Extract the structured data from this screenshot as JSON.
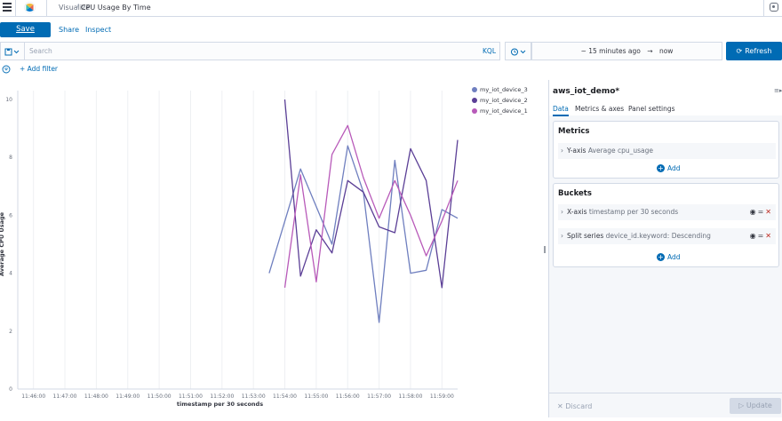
{
  "header": {
    "breadcrumb_root": "Visualize",
    "breadcrumb_sep": "/",
    "title": "CPU Usage By Time"
  },
  "actions": {
    "save": "Save",
    "share": "Share",
    "inspect": "Inspect"
  },
  "query": {
    "placeholder": "Search",
    "language": "KQL",
    "range_start": "~ 15 minutes ago",
    "range_arrow": "→",
    "range_end": "now",
    "refresh": "Refresh"
  },
  "filters": {
    "add_filter": "+ Add filter"
  },
  "panel": {
    "title": "aws_iot_demo*",
    "tabs": [
      "Data",
      "Metrics & axes",
      "Panel settings"
    ],
    "metrics_title": "Metrics",
    "metric_row": {
      "label": "Y-axis",
      "desc": "Average cpu_usage"
    },
    "buckets_title": "Buckets",
    "bucket_rows": [
      {
        "label": "X-axis",
        "desc": "timestamp per 30 seconds"
      },
      {
        "label": "Split series",
        "desc": "device_id.keyword: Descending"
      }
    ],
    "add_label": "Add",
    "discard": "Discard",
    "update": "Update"
  },
  "chart_data": {
    "type": "line",
    "xlabel": "timestamp per 30 seconds",
    "ylabel": "Average CPU Usage",
    "ylim": [
      0,
      10
    ],
    "yticks": [
      "0",
      "2",
      "4",
      "6",
      "8",
      "10"
    ],
    "x_ticks": [
      "11:46:00",
      "11:47:00",
      "11:48:00",
      "11:49:00",
      "11:50:00",
      "11:51:00",
      "11:52:00",
      "11:53:00",
      "11:54:00",
      "11:55:00",
      "11:56:00",
      "11:57:00",
      "11:58:00",
      "11:59:00"
    ],
    "legend_position": "top-right",
    "series": [
      {
        "name": "my_iot_device_3",
        "color": "#6f7fbf",
        "x": [
          "11:53:30",
          "11:54:30",
          "11:55:00",
          "11:55:30",
          "11:56:00",
          "11:56:30",
          "11:57:00",
          "11:57:30",
          "11:58:00",
          "11:58:30",
          "11:59:00",
          "11:59:30"
        ],
        "values": [
          4.0,
          7.6,
          6.3,
          5.0,
          8.4,
          6.8,
          2.3,
          7.9,
          4.0,
          4.1,
          6.2,
          5.9
        ]
      },
      {
        "name": "my_iot_device_2",
        "color": "#5b3f96",
        "x": [
          "11:54:00",
          "11:54:30",
          "11:55:00",
          "11:55:30",
          "11:56:00",
          "11:56:30",
          "11:57:00",
          "11:57:30",
          "11:58:00",
          "11:58:30",
          "11:59:00",
          "11:59:30"
        ],
        "values": [
          10.0,
          3.9,
          5.5,
          4.7,
          7.2,
          6.8,
          5.6,
          5.4,
          8.3,
          7.2,
          3.5,
          8.6
        ]
      },
      {
        "name": "my_iot_device_1",
        "color": "#b85ab9",
        "x": [
          "11:54:00",
          "11:54:30",
          "11:55:00",
          "11:55:30",
          "11:56:00",
          "11:56:30",
          "11:57:00",
          "11:57:30",
          "11:58:00",
          "11:58:30",
          "11:59:00",
          "11:59:30"
        ],
        "values": [
          3.5,
          7.4,
          3.7,
          8.1,
          9.1,
          7.3,
          5.9,
          7.2,
          6.0,
          4.6,
          5.8,
          7.2
        ]
      }
    ]
  }
}
